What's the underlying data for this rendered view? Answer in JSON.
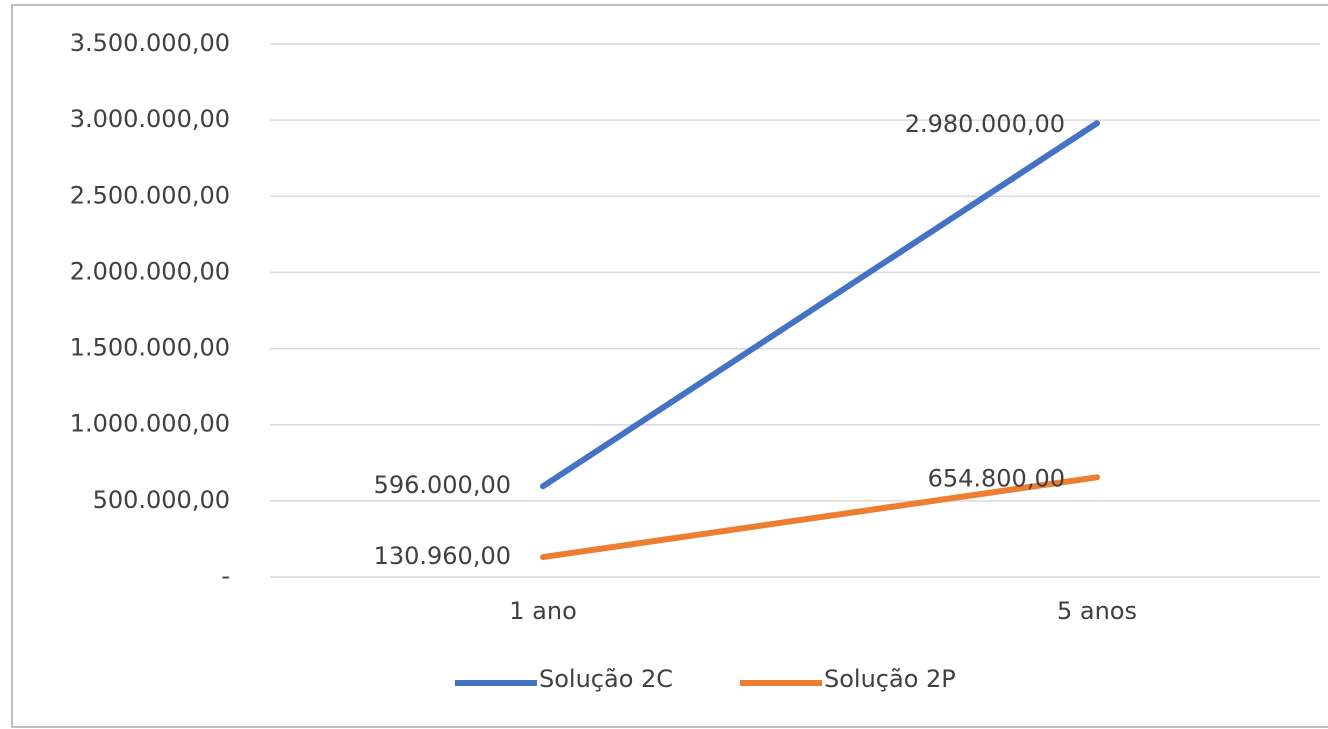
{
  "chart_data": {
    "type": "line",
    "categories": [
      "1 ano",
      "5 anos"
    ],
    "series": [
      {
        "name": "Solução 2C",
        "color": "#4472c4",
        "values": [
          596000,
          2980000
        ],
        "value_labels": [
          "596.000,00",
          "2.980.000,00"
        ]
      },
      {
        "name": "Solução 2P",
        "color": "#ed7d31",
        "values": [
          130960,
          654800
        ],
        "value_labels": [
          "130.960,00",
          "654.800,00"
        ]
      }
    ],
    "ylim": [
      0,
      3500000
    ],
    "yticks": [
      {
        "value": 0,
        "label": "-"
      },
      {
        "value": 500000,
        "label": "500.000,00"
      },
      {
        "value": 1000000,
        "label": "1.000.000,00"
      },
      {
        "value": 1500000,
        "label": "1.500.000,00"
      },
      {
        "value": 2000000,
        "label": "2.000.000,00"
      },
      {
        "value": 2500000,
        "label": "2.500.000,00"
      },
      {
        "value": 3000000,
        "label": "3.000.000,00"
      },
      {
        "value": 3500000,
        "label": "3.500.000,00"
      }
    ],
    "grid": true,
    "legend": "bottom"
  }
}
